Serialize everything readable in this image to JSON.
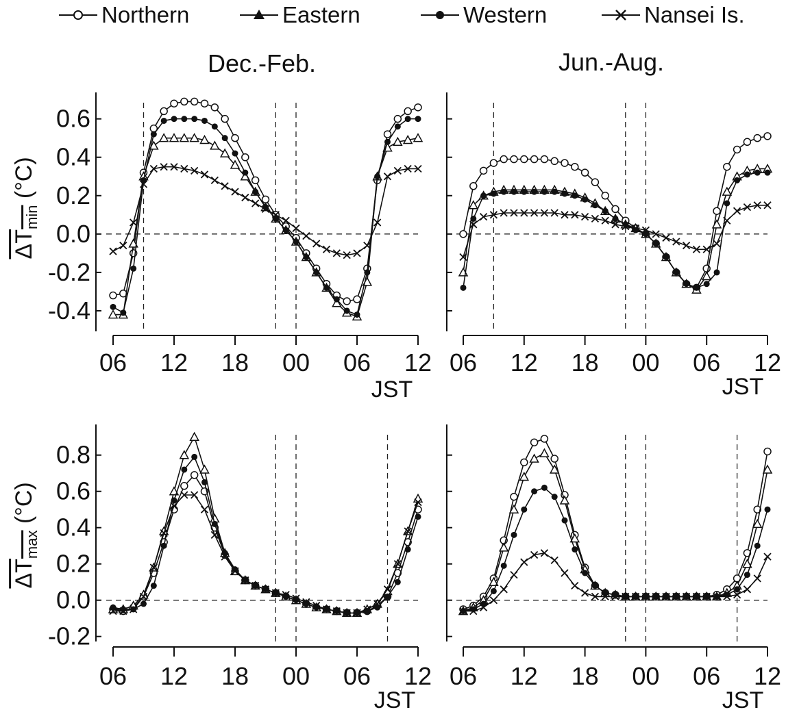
{
  "legend": [
    {
      "name": "Northern",
      "marker": "open-circle"
    },
    {
      "name": "Eastern",
      "marker": "triangle"
    },
    {
      "name": "Western",
      "marker": "filled-circle"
    },
    {
      "name": "Nansei Is.",
      "marker": "cross"
    }
  ],
  "column_titles": [
    "Dec.-Feb.",
    "Jun.-Aug."
  ],
  "y_labels": {
    "min": {
      "main": "ΔT",
      "sub": "min",
      "unit": " (°C)"
    },
    "max": {
      "main": "ΔT",
      "sub": "max",
      "unit": " (°C)"
    }
  },
  "x_ticks": [
    "06",
    "12",
    "18",
    "00",
    "06",
    "12"
  ],
  "x_unit": "JST",
  "chart_data": [
    {
      "id": "tmin-winter",
      "type": "line",
      "title": "Dec.-Feb.",
      "ylabel": "ΔTmin (°C)",
      "xlabel": "JST",
      "ylim": [
        -0.5,
        0.72
      ],
      "yticks": [
        -0.4,
        -0.2,
        0.0,
        0.2,
        0.4,
        0.6
      ],
      "show_ytick_labels": true,
      "hours": [
        6,
        7,
        8,
        9,
        10,
        11,
        12,
        13,
        14,
        15,
        16,
        17,
        18,
        19,
        20,
        21,
        22,
        23,
        24,
        25,
        26,
        27,
        28,
        29,
        30,
        31,
        32,
        33,
        34,
        35,
        36
      ],
      "vlines": [
        9,
        22,
        24
      ],
      "series": [
        {
          "name": "Northern",
          "values": [
            -0.32,
            -0.31,
            -0.1,
            0.32,
            0.55,
            0.64,
            0.68,
            0.69,
            0.69,
            0.68,
            0.66,
            0.6,
            0.5,
            0.4,
            0.28,
            0.18,
            0.1,
            0.04,
            -0.02,
            -0.1,
            -0.18,
            -0.26,
            -0.32,
            -0.35,
            -0.34,
            -0.18,
            0.28,
            0.52,
            0.6,
            0.64,
            0.66
          ]
        },
        {
          "name": "Eastern",
          "values": [
            -0.42,
            -0.42,
            -0.05,
            0.3,
            0.46,
            0.5,
            0.5,
            0.5,
            0.5,
            0.49,
            0.46,
            0.42,
            0.36,
            0.3,
            0.22,
            0.14,
            0.08,
            0.02,
            -0.04,
            -0.12,
            -0.2,
            -0.28,
            -0.36,
            -0.41,
            -0.43,
            -0.25,
            0.3,
            0.45,
            0.48,
            0.49,
            0.5
          ]
        },
        {
          "name": "Western",
          "values": [
            -0.38,
            -0.41,
            -0.18,
            0.28,
            0.52,
            0.59,
            0.6,
            0.6,
            0.6,
            0.59,
            0.56,
            0.5,
            0.42,
            0.32,
            0.22,
            0.14,
            0.08,
            0.02,
            -0.04,
            -0.12,
            -0.2,
            -0.28,
            -0.34,
            -0.4,
            -0.42,
            -0.2,
            0.3,
            0.48,
            0.56,
            0.6,
            0.6
          ]
        },
        {
          "name": "Nansei Is.",
          "values": [
            -0.09,
            -0.06,
            0.06,
            0.26,
            0.34,
            0.35,
            0.35,
            0.34,
            0.33,
            0.31,
            0.28,
            0.25,
            0.22,
            0.19,
            0.16,
            0.13,
            0.1,
            0.07,
            0.03,
            -0.01,
            -0.05,
            -0.08,
            -0.1,
            -0.11,
            -0.1,
            -0.06,
            0.06,
            0.3,
            0.33,
            0.34,
            0.34
          ]
        }
      ]
    },
    {
      "id": "tmin-summer",
      "type": "line",
      "title": "Jun.-Aug.",
      "ylabel": "ΔTmin (°C)",
      "xlabel": "JST",
      "ylim": [
        -0.5,
        0.72
      ],
      "yticks": [
        -0.4,
        -0.2,
        0.0,
        0.2,
        0.4,
        0.6
      ],
      "show_ytick_labels": false,
      "hours": [
        6,
        7,
        8,
        9,
        10,
        11,
        12,
        13,
        14,
        15,
        16,
        17,
        18,
        19,
        20,
        21,
        22,
        23,
        24,
        25,
        26,
        27,
        28,
        29,
        30,
        31,
        32,
        33,
        34,
        35,
        36
      ],
      "vlines": [
        9,
        22,
        24
      ],
      "series": [
        {
          "name": "Northern",
          "values": [
            0.0,
            0.25,
            0.33,
            0.37,
            0.39,
            0.39,
            0.39,
            0.39,
            0.39,
            0.38,
            0.37,
            0.35,
            0.32,
            0.27,
            0.2,
            0.13,
            0.07,
            0.03,
            0.0,
            -0.05,
            -0.12,
            -0.2,
            -0.26,
            -0.28,
            -0.18,
            0.12,
            0.35,
            0.44,
            0.48,
            0.5,
            0.51
          ]
        },
        {
          "name": "Eastern",
          "values": [
            -0.2,
            0.15,
            0.2,
            0.22,
            0.23,
            0.23,
            0.23,
            0.23,
            0.23,
            0.23,
            0.22,
            0.21,
            0.19,
            0.16,
            0.12,
            0.08,
            0.05,
            0.03,
            0.0,
            -0.05,
            -0.12,
            -0.2,
            -0.26,
            -0.29,
            -0.22,
            0.05,
            0.22,
            0.3,
            0.33,
            0.34,
            0.34
          ]
        },
        {
          "name": "Western",
          "values": [
            -0.28,
            0.08,
            0.2,
            0.21,
            0.22,
            0.22,
            0.22,
            0.22,
            0.22,
            0.22,
            0.21,
            0.2,
            0.18,
            0.15,
            0.12,
            0.08,
            0.05,
            0.02,
            0.0,
            -0.05,
            -0.12,
            -0.2,
            -0.26,
            -0.28,
            -0.26,
            -0.2,
            0.16,
            0.28,
            0.31,
            0.32,
            0.32
          ]
        },
        {
          "name": "Nansei Is.",
          "values": [
            -0.12,
            0.05,
            0.09,
            0.1,
            0.11,
            0.11,
            0.11,
            0.11,
            0.11,
            0.11,
            0.1,
            0.1,
            0.09,
            0.08,
            0.07,
            0.05,
            0.04,
            0.03,
            0.02,
            0.0,
            -0.02,
            -0.04,
            -0.06,
            -0.08,
            -0.08,
            -0.05,
            0.07,
            0.12,
            0.14,
            0.15,
            0.15
          ]
        }
      ]
    },
    {
      "id": "tmax-winter",
      "type": "line",
      "title": "",
      "ylabel": "ΔTmax (°C)",
      "xlabel": "JST",
      "ylim": [
        -0.22,
        0.95
      ],
      "yticks": [
        -0.2,
        0.0,
        0.2,
        0.4,
        0.6,
        0.8
      ],
      "show_ytick_labels": true,
      "hours": [
        6,
        7,
        8,
        9,
        10,
        11,
        12,
        13,
        14,
        15,
        16,
        17,
        18,
        19,
        20,
        21,
        22,
        23,
        24,
        25,
        26,
        27,
        28,
        29,
        30,
        31,
        32,
        33,
        34,
        35,
        36
      ],
      "vlines": [
        22,
        24,
        33
      ],
      "series": [
        {
          "name": "Northern",
          "values": [
            -0.05,
            -0.06,
            -0.04,
            0.02,
            0.15,
            0.32,
            0.5,
            0.63,
            0.69,
            0.6,
            0.4,
            0.25,
            0.16,
            0.11,
            0.08,
            0.06,
            0.04,
            0.02,
            0.0,
            -0.02,
            -0.04,
            -0.05,
            -0.06,
            -0.07,
            -0.07,
            -0.06,
            -0.03,
            0.02,
            0.15,
            0.32,
            0.5
          ]
        },
        {
          "name": "Eastern",
          "values": [
            -0.05,
            -0.05,
            -0.03,
            0.03,
            0.18,
            0.38,
            0.6,
            0.8,
            0.9,
            0.72,
            0.45,
            0.26,
            0.16,
            0.11,
            0.08,
            0.06,
            0.04,
            0.02,
            0.0,
            -0.02,
            -0.04,
            -0.05,
            -0.06,
            -0.07,
            -0.07,
            -0.05,
            -0.02,
            0.05,
            0.2,
            0.38,
            0.56
          ]
        },
        {
          "name": "Western",
          "values": [
            -0.04,
            -0.05,
            -0.05,
            -0.02,
            0.08,
            0.3,
            0.55,
            0.72,
            0.79,
            0.65,
            0.42,
            0.26,
            0.17,
            0.11,
            0.08,
            0.06,
            0.04,
            0.02,
            0.0,
            -0.02,
            -0.04,
            -0.05,
            -0.06,
            -0.07,
            -0.07,
            -0.06,
            -0.04,
            0.02,
            0.1,
            0.28,
            0.46
          ]
        },
        {
          "name": "Nansei Is.",
          "values": [
            -0.06,
            -0.06,
            -0.05,
            0.02,
            0.18,
            0.37,
            0.52,
            0.58,
            0.58,
            0.5,
            0.36,
            0.24,
            0.16,
            0.11,
            0.08,
            0.06,
            0.04,
            0.03,
            0.01,
            -0.01,
            -0.03,
            -0.05,
            -0.06,
            -0.07,
            -0.07,
            -0.05,
            -0.02,
            0.06,
            0.2,
            0.38,
            0.54
          ]
        }
      ]
    },
    {
      "id": "tmax-summer",
      "type": "line",
      "title": "",
      "ylabel": "ΔTmax (°C)",
      "xlabel": "JST",
      "ylim": [
        -0.22,
        0.95
      ],
      "yticks": [
        -0.2,
        0.0,
        0.2,
        0.4,
        0.6,
        0.8
      ],
      "show_ytick_labels": false,
      "hours": [
        6,
        7,
        8,
        9,
        10,
        11,
        12,
        13,
        14,
        15,
        16,
        17,
        18,
        19,
        20,
        21,
        22,
        23,
        24,
        25,
        26,
        27,
        28,
        29,
        30,
        31,
        32,
        33,
        34,
        35,
        36
      ],
      "vlines": [
        22,
        24,
        33
      ],
      "series": [
        {
          "name": "Northern",
          "values": [
            -0.05,
            -0.03,
            0.02,
            0.12,
            0.33,
            0.57,
            0.76,
            0.87,
            0.89,
            0.78,
            0.58,
            0.36,
            0.18,
            0.08,
            0.04,
            0.03,
            0.02,
            0.02,
            0.02,
            0.02,
            0.02,
            0.02,
            0.02,
            0.02,
            0.02,
            0.03,
            0.06,
            0.12,
            0.26,
            0.5,
            0.82
          ]
        },
        {
          "name": "Eastern",
          "values": [
            -0.06,
            -0.04,
            0.0,
            0.1,
            0.29,
            0.5,
            0.68,
            0.78,
            0.81,
            0.72,
            0.55,
            0.34,
            0.17,
            0.08,
            0.04,
            0.03,
            0.02,
            0.02,
            0.02,
            0.02,
            0.02,
            0.02,
            0.02,
            0.02,
            0.02,
            0.02,
            0.04,
            0.08,
            0.2,
            0.42,
            0.72
          ]
        },
        {
          "name": "Western",
          "values": [
            -0.06,
            -0.05,
            -0.02,
            0.05,
            0.19,
            0.36,
            0.5,
            0.6,
            0.62,
            0.57,
            0.44,
            0.28,
            0.15,
            0.08,
            0.04,
            0.03,
            0.02,
            0.02,
            0.02,
            0.02,
            0.02,
            0.02,
            0.02,
            0.02,
            0.02,
            0.02,
            0.03,
            0.06,
            0.14,
            0.3,
            0.5
          ]
        },
        {
          "name": "Nansei Is.",
          "values": [
            -0.06,
            -0.06,
            -0.04,
            0.0,
            0.06,
            0.14,
            0.21,
            0.25,
            0.26,
            0.22,
            0.15,
            0.08,
            0.04,
            0.02,
            0.02,
            0.02,
            0.02,
            0.02,
            0.02,
            0.02,
            0.02,
            0.02,
            0.02,
            0.02,
            0.02,
            0.02,
            0.02,
            0.03,
            0.06,
            0.12,
            0.24
          ]
        }
      ]
    }
  ]
}
